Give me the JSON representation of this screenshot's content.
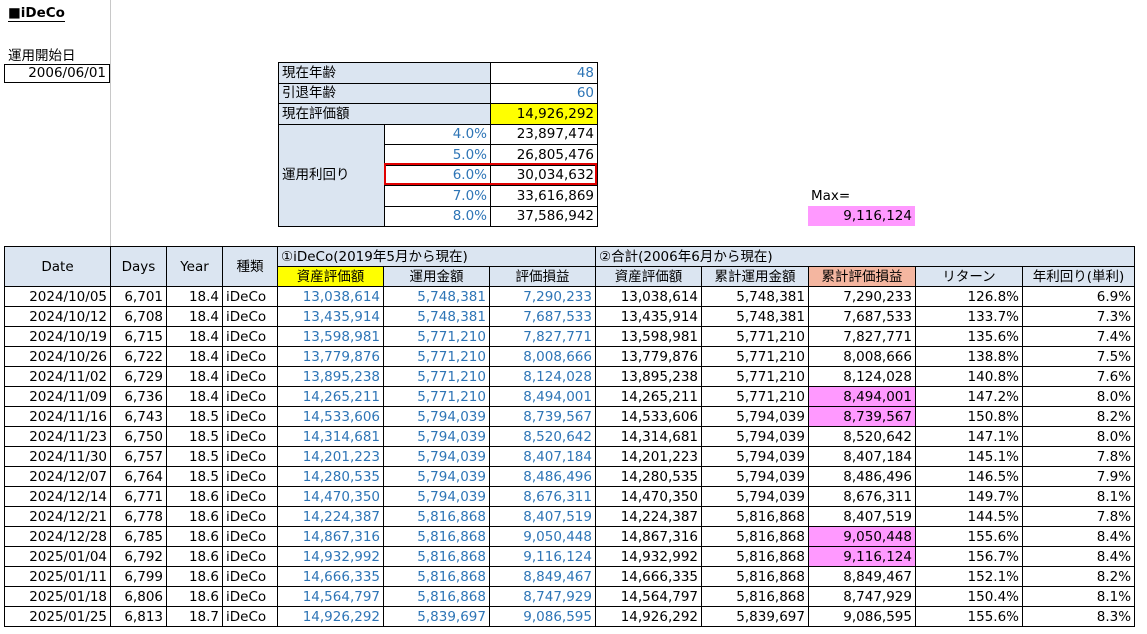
{
  "title": "■iDeCo",
  "start": {
    "label": "運用開始日",
    "value": "2006/06/01"
  },
  "summary": {
    "current_age_label": "現在年齢",
    "current_age": "48",
    "retire_age_label": "引退年齢",
    "retire_age": "60",
    "current_value_label": "現在評価額",
    "current_value": "14,926,292",
    "rate_label": "運用利回り",
    "rates": [
      {
        "rate": "4.0%",
        "value": "23,897,474"
      },
      {
        "rate": "5.0%",
        "value": "26,805,476"
      },
      {
        "rate": "6.0%",
        "value": "30,034,632"
      },
      {
        "rate": "7.0%",
        "value": "33,616,869"
      },
      {
        "rate": "8.0%",
        "value": "37,586,942"
      }
    ]
  },
  "max": {
    "label": "Max=",
    "value": "9,116,124"
  },
  "table": {
    "headers": {
      "date": "Date",
      "days": "Days",
      "year": "Year",
      "type": "種類",
      "group1": "①iDeCo(2019年5月から現在)",
      "group2": "②合計(2006年6月から現在)",
      "g1_value": "資産評価額",
      "g1_invest": "運用金額",
      "g1_gain": "評価損益",
      "g2_value": "資産評価額",
      "g2_invest": "累計運用金額",
      "g2_gain": "累計評価損益",
      "return": "リターン",
      "annual": "年利回り(単利)"
    },
    "rows": [
      {
        "date": "2024/10/05",
        "days": "6,701",
        "year": "18.4",
        "type": "iDeCo",
        "v1": "13,038,614",
        "i1": "5,748,381",
        "g1": "7,290,233",
        "v2": "13,038,614",
        "i2": "5,748,381",
        "g2": "7,290,233",
        "ret": "126.8%",
        "ann": "6.9%",
        "pink": false
      },
      {
        "date": "2024/10/12",
        "days": "6,708",
        "year": "18.4",
        "type": "iDeCo",
        "v1": "13,435,914",
        "i1": "5,748,381",
        "g1": "7,687,533",
        "v2": "13,435,914",
        "i2": "5,748,381",
        "g2": "7,687,533",
        "ret": "133.7%",
        "ann": "7.3%",
        "pink": false
      },
      {
        "date": "2024/10/19",
        "days": "6,715",
        "year": "18.4",
        "type": "iDeCo",
        "v1": "13,598,981",
        "i1": "5,771,210",
        "g1": "7,827,771",
        "v2": "13,598,981",
        "i2": "5,771,210",
        "g2": "7,827,771",
        "ret": "135.6%",
        "ann": "7.4%",
        "pink": false
      },
      {
        "date": "2024/10/26",
        "days": "6,722",
        "year": "18.4",
        "type": "iDeCo",
        "v1": "13,779,876",
        "i1": "5,771,210",
        "g1": "8,008,666",
        "v2": "13,779,876",
        "i2": "5,771,210",
        "g2": "8,008,666",
        "ret": "138.8%",
        "ann": "7.5%",
        "pink": false
      },
      {
        "date": "2024/11/02",
        "days": "6,729",
        "year": "18.4",
        "type": "iDeCo",
        "v1": "13,895,238",
        "i1": "5,771,210",
        "g1": "8,124,028",
        "v2": "13,895,238",
        "i2": "5,771,210",
        "g2": "8,124,028",
        "ret": "140.8%",
        "ann": "7.6%",
        "pink": false
      },
      {
        "date": "2024/11/09",
        "days": "6,736",
        "year": "18.4",
        "type": "iDeCo",
        "v1": "14,265,211",
        "i1": "5,771,210",
        "g1": "8,494,001",
        "v2": "14,265,211",
        "i2": "5,771,210",
        "g2": "8,494,001",
        "ret": "147.2%",
        "ann": "8.0%",
        "pink": true
      },
      {
        "date": "2024/11/16",
        "days": "6,743",
        "year": "18.5",
        "type": "iDeCo",
        "v1": "14,533,606",
        "i1": "5,794,039",
        "g1": "8,739,567",
        "v2": "14,533,606",
        "i2": "5,794,039",
        "g2": "8,739,567",
        "ret": "150.8%",
        "ann": "8.2%",
        "pink": true
      },
      {
        "date": "2024/11/23",
        "days": "6,750",
        "year": "18.5",
        "type": "iDeCo",
        "v1": "14,314,681",
        "i1": "5,794,039",
        "g1": "8,520,642",
        "v2": "14,314,681",
        "i2": "5,794,039",
        "g2": "8,520,642",
        "ret": "147.1%",
        "ann": "8.0%",
        "pink": false
      },
      {
        "date": "2024/11/30",
        "days": "6,757",
        "year": "18.5",
        "type": "iDeCo",
        "v1": "14,201,223",
        "i1": "5,794,039",
        "g1": "8,407,184",
        "v2": "14,201,223",
        "i2": "5,794,039",
        "g2": "8,407,184",
        "ret": "145.1%",
        "ann": "7.8%",
        "pink": false
      },
      {
        "date": "2024/12/07",
        "days": "6,764",
        "year": "18.5",
        "type": "iDeCo",
        "v1": "14,280,535",
        "i1": "5,794,039",
        "g1": "8,486,496",
        "v2": "14,280,535",
        "i2": "5,794,039",
        "g2": "8,486,496",
        "ret": "146.5%",
        "ann": "7.9%",
        "pink": false
      },
      {
        "date": "2024/12/14",
        "days": "6,771",
        "year": "18.6",
        "type": "iDeCo",
        "v1": "14,470,350",
        "i1": "5,794,039",
        "g1": "8,676,311",
        "v2": "14,470,350",
        "i2": "5,794,039",
        "g2": "8,676,311",
        "ret": "149.7%",
        "ann": "8.1%",
        "pink": false
      },
      {
        "date": "2024/12/21",
        "days": "6,778",
        "year": "18.6",
        "type": "iDeCo",
        "v1": "14,224,387",
        "i1": "5,816,868",
        "g1": "8,407,519",
        "v2": "14,224,387",
        "i2": "5,816,868",
        "g2": "8,407,519",
        "ret": "144.5%",
        "ann": "7.8%",
        "pink": false
      },
      {
        "date": "2024/12/28",
        "days": "6,785",
        "year": "18.6",
        "type": "iDeCo",
        "v1": "14,867,316",
        "i1": "5,816,868",
        "g1": "9,050,448",
        "v2": "14,867,316",
        "i2": "5,816,868",
        "g2": "9,050,448",
        "ret": "155.6%",
        "ann": "8.4%",
        "pink": true
      },
      {
        "date": "2025/01/04",
        "days": "6,792",
        "year": "18.6",
        "type": "iDeCo",
        "v1": "14,932,992",
        "i1": "5,816,868",
        "g1": "9,116,124",
        "v2": "14,932,992",
        "i2": "5,816,868",
        "g2": "9,116,124",
        "ret": "156.7%",
        "ann": "8.4%",
        "pink": true
      },
      {
        "date": "2025/01/11",
        "days": "6,799",
        "year": "18.6",
        "type": "iDeCo",
        "v1": "14,666,335",
        "i1": "5,816,868",
        "g1": "8,849,467",
        "v2": "14,666,335",
        "i2": "5,816,868",
        "g2": "8,849,467",
        "ret": "152.1%",
        "ann": "8.2%",
        "pink": false
      },
      {
        "date": "2025/01/18",
        "days": "6,806",
        "year": "18.6",
        "type": "iDeCo",
        "v1": "14,564,797",
        "i1": "5,816,868",
        "g1": "8,747,929",
        "v2": "14,564,797",
        "i2": "5,816,868",
        "g2": "8,747,929",
        "ret": "150.4%",
        "ann": "8.1%",
        "pink": false
      },
      {
        "date": "2025/01/25",
        "days": "6,813",
        "year": "18.7",
        "type": "iDeCo",
        "v1": "14,926,292",
        "i1": "5,839,697",
        "g1": "9,086,595",
        "v2": "14,926,292",
        "i2": "5,839,697",
        "g2": "9,086,595",
        "ret": "155.6%",
        "ann": "8.3%",
        "pink": false
      }
    ]
  }
}
